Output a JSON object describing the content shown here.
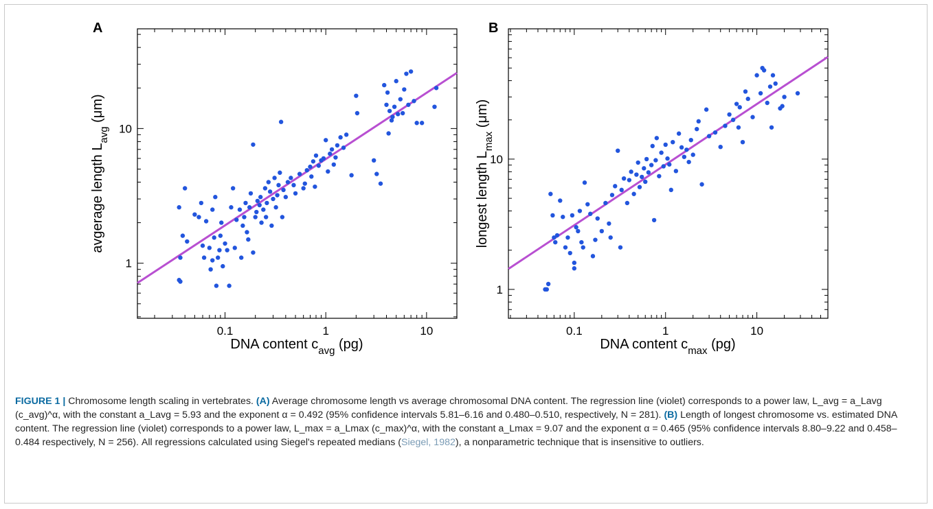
{
  "figure": {
    "panels": [
      {
        "letter": "A",
        "xlabel_main": "DNA content c",
        "xlabel_sub": "avg",
        "xlabel_unit": " (pg)",
        "ylabel_main": "avgerage length  L",
        "ylabel_sub": "avg",
        "ylabel_unit": " (μm)"
      },
      {
        "letter": "B",
        "xlabel_main": "DNA content c",
        "xlabel_sub": "max",
        "xlabel_unit": " (pg)",
        "ylabel_main": "longest length  L",
        "ylabel_sub": "max",
        "ylabel_unit": " (μm)"
      }
    ]
  },
  "chart_data": [
    {
      "type": "scatter",
      "panel": "A",
      "log_x": true,
      "log_y": true,
      "xlim": [
        0.0135,
        20
      ],
      "ylim": [
        0.39,
        55
      ],
      "xticks": [
        0.1,
        1,
        10
      ],
      "xtick_labels": [
        "0.1",
        "1",
        "10"
      ],
      "yticks": [
        1,
        10
      ],
      "ytick_labels": [
        "1",
        "10"
      ],
      "point_color": "#2255dd",
      "line_color": "#b84fd1",
      "fit": {
        "a": 5.93,
        "alpha": 0.492
      },
      "points": [
        [
          0.035,
          0.75
        ],
        [
          0.036,
          0.73
        ],
        [
          0.035,
          2.6
        ],
        [
          0.04,
          3.6
        ],
        [
          0.038,
          1.6
        ],
        [
          0.036,
          1.1
        ],
        [
          0.042,
          1.45
        ],
        [
          0.05,
          2.3
        ],
        [
          0.055,
          2.2
        ],
        [
          0.058,
          2.8
        ],
        [
          0.06,
          1.35
        ],
        [
          0.062,
          1.1
        ],
        [
          0.065,
          2.05
        ],
        [
          0.07,
          1.3
        ],
        [
          0.072,
          0.9
        ],
        [
          0.075,
          2.5
        ],
        [
          0.08,
          3.1
        ],
        [
          0.075,
          1.05
        ],
        [
          0.078,
          1.55
        ],
        [
          0.082,
          0.68
        ],
        [
          0.085,
          1.1
        ],
        [
          0.088,
          1.25
        ],
        [
          0.09,
          1.6
        ],
        [
          0.092,
          2.0
        ],
        [
          0.095,
          0.95
        ],
        [
          0.1,
          1.4
        ],
        [
          0.105,
          1.25
        ],
        [
          0.11,
          0.68
        ],
        [
          0.115,
          2.6
        ],
        [
          0.12,
          3.6
        ],
        [
          0.125,
          1.3
        ],
        [
          0.13,
          2.1
        ],
        [
          0.14,
          2.5
        ],
        [
          0.145,
          1.1
        ],
        [
          0.15,
          1.9
        ],
        [
          0.155,
          2.2
        ],
        [
          0.16,
          2.8
        ],
        [
          0.165,
          1.7
        ],
        [
          0.17,
          1.5
        ],
        [
          0.175,
          2.6
        ],
        [
          0.18,
          3.3
        ],
        [
          0.19,
          7.6
        ],
        [
          0.19,
          1.2
        ],
        [
          0.2,
          2.2
        ],
        [
          0.205,
          2.4
        ],
        [
          0.21,
          2.9
        ],
        [
          0.22,
          2.7
        ],
        [
          0.225,
          3.1
        ],
        [
          0.23,
          2.0
        ],
        [
          0.24,
          2.5
        ],
        [
          0.25,
          3.6
        ],
        [
          0.255,
          2.2
        ],
        [
          0.26,
          2.8
        ],
        [
          0.27,
          4.0
        ],
        [
          0.28,
          3.4
        ],
        [
          0.29,
          1.9
        ],
        [
          0.3,
          3.0
        ],
        [
          0.31,
          4.3
        ],
        [
          0.32,
          2.6
        ],
        [
          0.33,
          3.2
        ],
        [
          0.34,
          3.8
        ],
        [
          0.35,
          4.7
        ],
        [
          0.36,
          11.2
        ],
        [
          0.37,
          2.2
        ],
        [
          0.38,
          3.5
        ],
        [
          0.4,
          3.1
        ],
        [
          0.42,
          4.0
        ],
        [
          0.45,
          4.3
        ],
        [
          0.48,
          3.8
        ],
        [
          0.5,
          3.3
        ],
        [
          0.55,
          4.6
        ],
        [
          0.6,
          3.6
        ],
        [
          0.62,
          3.9
        ],
        [
          0.65,
          4.9
        ],
        [
          0.7,
          5.2
        ],
        [
          0.72,
          4.4
        ],
        [
          0.75,
          5.7
        ],
        [
          0.78,
          3.7
        ],
        [
          0.8,
          6.3
        ],
        [
          0.85,
          5.3
        ],
        [
          0.9,
          5.8
        ],
        [
          0.95,
          6.0
        ],
        [
          1.0,
          8.2
        ],
        [
          1.05,
          4.8
        ],
        [
          1.1,
          6.5
        ],
        [
          1.15,
          7.0
        ],
        [
          1.2,
          5.4
        ],
        [
          1.25,
          6.1
        ],
        [
          1.3,
          7.5
        ],
        [
          1.4,
          8.6
        ],
        [
          1.5,
          7.2
        ],
        [
          1.6,
          9.0
        ],
        [
          1.8,
          4.5
        ],
        [
          2.0,
          17.5
        ],
        [
          2.05,
          13.0
        ],
        [
          3.0,
          5.8
        ],
        [
          3.2,
          4.6
        ],
        [
          3.5,
          3.9
        ],
        [
          3.8,
          21.0
        ],
        [
          4.0,
          15.0
        ],
        [
          4.1,
          18.5
        ],
        [
          4.2,
          9.2
        ],
        [
          4.3,
          13.5
        ],
        [
          4.5,
          11.5
        ],
        [
          4.6,
          12.2
        ],
        [
          4.8,
          14.5
        ],
        [
          5.0,
          22.5
        ],
        [
          5.2,
          12.8
        ],
        [
          5.5,
          16.5
        ],
        [
          5.8,
          13.0
        ],
        [
          6.0,
          19.5
        ],
        [
          6.3,
          25.5
        ],
        [
          6.6,
          15.0
        ],
        [
          7.0,
          26.5
        ],
        [
          7.5,
          16.0
        ],
        [
          8.0,
          11.0
        ],
        [
          9.0,
          11.0
        ],
        [
          12.0,
          14.5
        ],
        [
          12.5,
          20.0
        ]
      ]
    },
    {
      "type": "scatter",
      "panel": "B",
      "log_x": true,
      "log_y": true,
      "xlim": [
        0.019,
        60
      ],
      "ylim": [
        0.6,
        100
      ],
      "xticks": [
        0.1,
        1,
        10
      ],
      "xtick_labels": [
        "0.1",
        "1",
        "10"
      ],
      "yticks": [
        1,
        10
      ],
      "ytick_labels": [
        "1",
        "10"
      ],
      "point_color": "#2255dd",
      "line_color": "#b84fd1",
      "fit": {
        "a": 9.07,
        "alpha": 0.465
      },
      "points": [
        [
          0.048,
          1.0
        ],
        [
          0.05,
          1.0
        ],
        [
          0.052,
          1.1
        ],
        [
          0.055,
          5.4
        ],
        [
          0.058,
          3.7
        ],
        [
          0.06,
          2.5
        ],
        [
          0.062,
          2.3
        ],
        [
          0.065,
          2.6
        ],
        [
          0.07,
          4.8
        ],
        [
          0.075,
          3.6
        ],
        [
          0.08,
          2.1
        ],
        [
          0.085,
          2.5
        ],
        [
          0.09,
          1.9
        ],
        [
          0.095,
          3.7
        ],
        [
          0.1,
          1.45
        ],
        [
          0.1,
          1.6
        ],
        [
          0.105,
          3.0
        ],
        [
          0.11,
          2.8
        ],
        [
          0.115,
          4.0
        ],
        [
          0.12,
          2.3
        ],
        [
          0.125,
          2.1
        ],
        [
          0.13,
          6.6
        ],
        [
          0.14,
          4.5
        ],
        [
          0.15,
          3.8
        ],
        [
          0.16,
          1.8
        ],
        [
          0.17,
          2.4
        ],
        [
          0.18,
          3.5
        ],
        [
          0.2,
          2.8
        ],
        [
          0.22,
          4.6
        ],
        [
          0.24,
          3.2
        ],
        [
          0.25,
          2.5
        ],
        [
          0.26,
          5.3
        ],
        [
          0.28,
          6.2
        ],
        [
          0.3,
          11.6
        ],
        [
          0.32,
          2.1
        ],
        [
          0.33,
          5.8
        ],
        [
          0.35,
          7.1
        ],
        [
          0.38,
          4.6
        ],
        [
          0.4,
          6.9
        ],
        [
          0.42,
          8.0
        ],
        [
          0.45,
          5.4
        ],
        [
          0.48,
          7.6
        ],
        [
          0.5,
          9.4
        ],
        [
          0.52,
          6.1
        ],
        [
          0.55,
          7.3
        ],
        [
          0.58,
          8.5
        ],
        [
          0.6,
          6.7
        ],
        [
          0.62,
          10.0
        ],
        [
          0.65,
          7.9
        ],
        [
          0.7,
          9.0
        ],
        [
          0.72,
          12.6
        ],
        [
          0.75,
          3.4
        ],
        [
          0.78,
          9.8
        ],
        [
          0.8,
          14.5
        ],
        [
          0.85,
          7.4
        ],
        [
          0.9,
          11.2
        ],
        [
          0.95,
          8.8
        ],
        [
          1.0,
          12.9
        ],
        [
          1.05,
          10.1
        ],
        [
          1.1,
          9.1
        ],
        [
          1.15,
          5.8
        ],
        [
          1.2,
          13.5
        ],
        [
          1.3,
          8.1
        ],
        [
          1.4,
          15.7
        ],
        [
          1.5,
          12.3
        ],
        [
          1.6,
          10.4
        ],
        [
          1.7,
          11.8
        ],
        [
          1.8,
          9.5
        ],
        [
          1.9,
          14.0
        ],
        [
          2.0,
          10.8
        ],
        [
          2.2,
          17.0
        ],
        [
          2.3,
          19.5
        ],
        [
          2.5,
          6.4
        ],
        [
          2.8,
          24.0
        ],
        [
          3.0,
          15.0
        ],
        [
          3.5,
          16.0
        ],
        [
          4.0,
          12.4
        ],
        [
          4.5,
          18.0
        ],
        [
          5.0,
          22.0
        ],
        [
          5.5,
          20.0
        ],
        [
          6.0,
          26.5
        ],
        [
          6.3,
          17.5
        ],
        [
          6.5,
          25.0
        ],
        [
          7.0,
          13.5
        ],
        [
          7.5,
          33.0
        ],
        [
          8.0,
          29.0
        ],
        [
          9.0,
          21.0
        ],
        [
          10.0,
          44.0
        ],
        [
          11.0,
          32.0
        ],
        [
          11.5,
          50.0
        ],
        [
          12.0,
          48.0
        ],
        [
          13.0,
          27.0
        ],
        [
          14.0,
          36.0
        ],
        [
          14.5,
          17.5
        ],
        [
          15.0,
          44.0
        ],
        [
          16.0,
          38.0
        ],
        [
          18.0,
          24.5
        ],
        [
          19.0,
          25.5
        ],
        [
          20.0,
          30.0
        ],
        [
          28.0,
          32.0
        ]
      ]
    }
  ],
  "caption": {
    "label": "FIGURE 1 |",
    "title": " Chromosome length scaling in vertebrates. ",
    "a_label": "(A)",
    "a_text_1": " Average chromosome length vs average chromosomal DNA content. The regression line (violet) corresponds to a power law, ",
    "b_label": "(B)",
    "b_text_1": " Length of longest chromosome vs. estimated DNA content. The regression line (violet) corresponds to a power law, ",
    "a_formula": "L_avg = a_Lavg (c_avg)^α",
    "a_text_2": ", with the constant a_Lavg = 5.93 and the exponent α = 0.492 (95% confidence intervals 5.81–6.16 and 0.480–0.510, respectively, N = 281). ",
    "b_formula": "L_max = a_Lmax (c_max)^α",
    "b_text_2": ", with the constant a_Lmax = 9.07 and the exponent α = 0.465 (95% confidence intervals 8.80–9.22 and 0.458–0.484 respectively, N = 256). All regressions calculated using Siegel's repeated medians (",
    "ref": "Siegel, 1982",
    "end": "), a nonparametric technique that is insensitive to outliers."
  },
  "style": {
    "frame_border": "#c9c9c9",
    "label_color": "#0a6aa1",
    "ref_color": "#7a9bb5"
  }
}
